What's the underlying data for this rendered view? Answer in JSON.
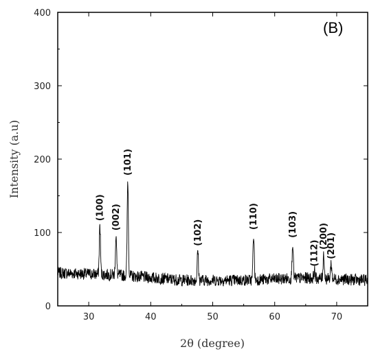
{
  "chart_data": {
    "type": "line",
    "panel_label": "(B)",
    "xlabel": "2θ (degree)",
    "ylabel": "Intensity (a.u)",
    "xlim": [
      25,
      75
    ],
    "ylim": [
      0,
      400
    ],
    "x_ticks": [
      30,
      40,
      50,
      60,
      70
    ],
    "y_ticks": [
      0,
      100,
      200,
      300,
      400
    ],
    "baseline": {
      "points": [
        [
          25,
          45
        ],
        [
          35,
          42
        ],
        [
          45,
          35
        ],
        [
          55,
          35
        ],
        [
          65,
          38
        ],
        [
          75,
          35
        ]
      ],
      "noise": 8
    },
    "peaks": [
      {
        "label": "(100)",
        "x": 31.8,
        "y": 110
      },
      {
        "label": "(002)",
        "x": 34.4,
        "y": 97
      },
      {
        "label": "(101)",
        "x": 36.3,
        "y": 172
      },
      {
        "label": "(102)",
        "x": 47.6,
        "y": 76
      },
      {
        "label": "(110)",
        "x": 56.6,
        "y": 98
      },
      {
        "label": "(103)",
        "x": 62.9,
        "y": 87
      },
      {
        "label": "(112)",
        "x": 66.4,
        "y": 48
      },
      {
        "label": "(200)",
        "x": 67.9,
        "y": 71
      },
      {
        "label": "(201)",
        "x": 69.1,
        "y": 58
      }
    ],
    "grid": false,
    "line_color": "#000000"
  }
}
